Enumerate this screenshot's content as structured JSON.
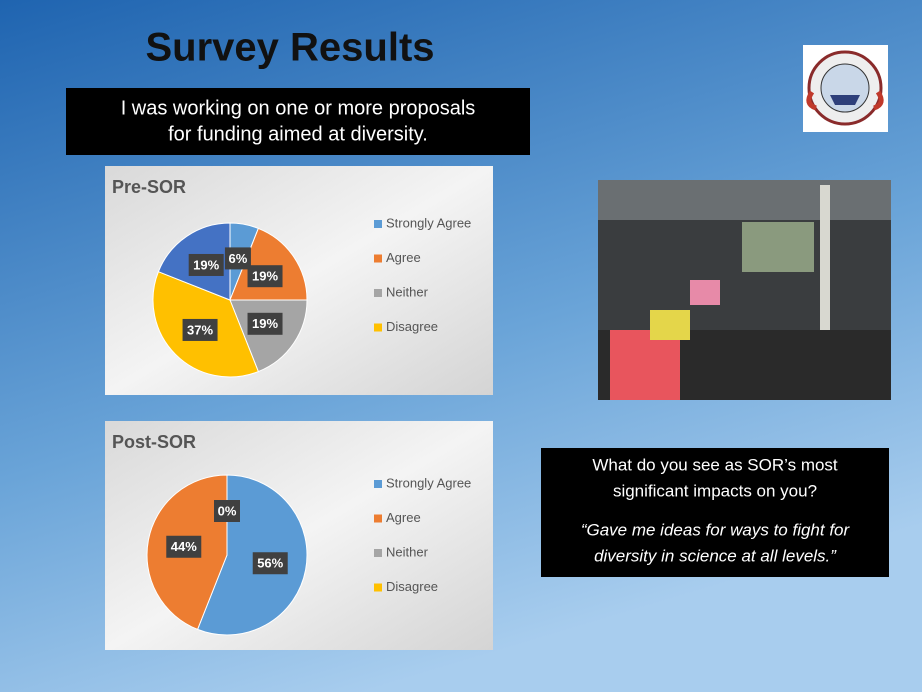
{
  "title": "Survey Results",
  "question": [
    "I was working on one or more proposals",
    "for funding aimed at diversity."
  ],
  "chart_data": [
    {
      "type": "pie",
      "title": "Pre-SOR",
      "categories": [
        "Strongly Agree",
        "Agree",
        "Neither",
        "Disagree",
        null
      ],
      "values": [
        6,
        19,
        19,
        37,
        19
      ],
      "value_labels": [
        "6%",
        "19%",
        "19%",
        "37%",
        "19%"
      ],
      "colors": [
        "#5b9bd5",
        "#ed7d31",
        "#a5a5a5",
        "#ffc000",
        "#4472c4"
      ]
    },
    {
      "type": "pie",
      "title": "Post-SOR",
      "categories": [
        "Strongly Agree",
        "Agree",
        "Neither",
        "Disagree"
      ],
      "values": [
        56,
        44,
        0,
        null
      ],
      "value_labels": [
        "56%",
        "44%",
        "0%",
        null
      ],
      "colors": [
        "#5b9bd5",
        "#ed7d31",
        "#a5a5a5",
        "#ffc000"
      ]
    }
  ],
  "quote": {
    "question": [
      "What do you see as SOR’s most",
      "significant impacts on you?"
    ],
    "answer": [
      "“Gave me ideas for ways to fight for",
      "diversity in science at all levels.”"
    ]
  }
}
